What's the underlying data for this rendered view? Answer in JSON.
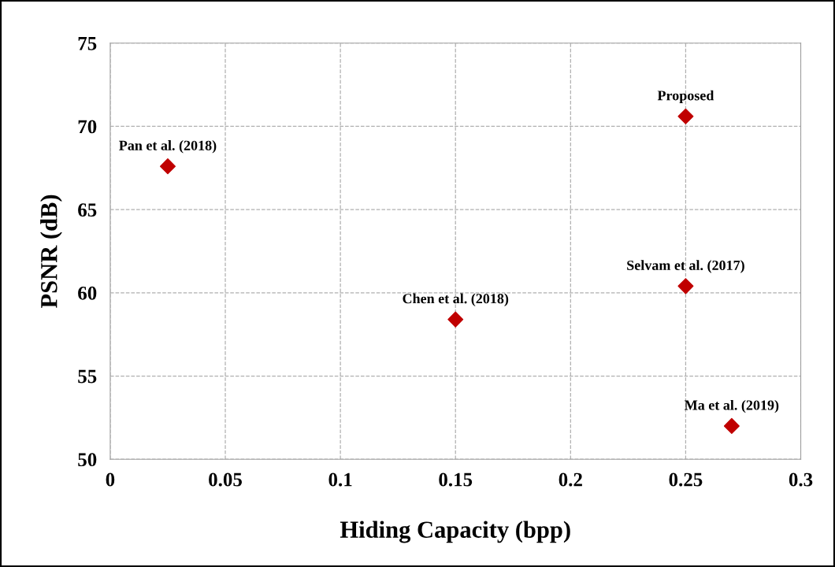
{
  "chart_data": {
    "type": "scatter",
    "xlabel": "Hiding Capacity (bpp)",
    "ylabel": "PSNR (dB)",
    "x": [
      0.025,
      0.15,
      0.25,
      0.25,
      0.27
    ],
    "series": [
      {
        "color": "#c00000",
        "values": [
          67.6,
          58.4,
          70.6,
          60.4,
          52.0
        ]
      }
    ],
    "marker": "diamond",
    "grid": true,
    "xlim": [
      0,
      0.3
    ],
    "xticks": [
      0,
      0.05,
      0.1,
      0.15,
      0.2,
      0.25,
      0.3
    ],
    "ylim": [
      50,
      75
    ],
    "yticks": [
      50,
      55,
      60,
      65,
      70,
      75
    ],
    "annotations": [
      {
        "text": "Pan et al. (2018)",
        "x": 0.025,
        "y": 67.6
      },
      {
        "text": "Chen et al. (2018)",
        "x": 0.15,
        "y": 58.4
      },
      {
        "text": "Proposed",
        "x": 0.25,
        "y": 70.6
      },
      {
        "text": "Selvam et al. (2017)",
        "x": 0.25,
        "y": 60.4
      },
      {
        "text": "Ma et al. (2019)",
        "x": 0.27,
        "y": 52.0
      }
    ]
  }
}
